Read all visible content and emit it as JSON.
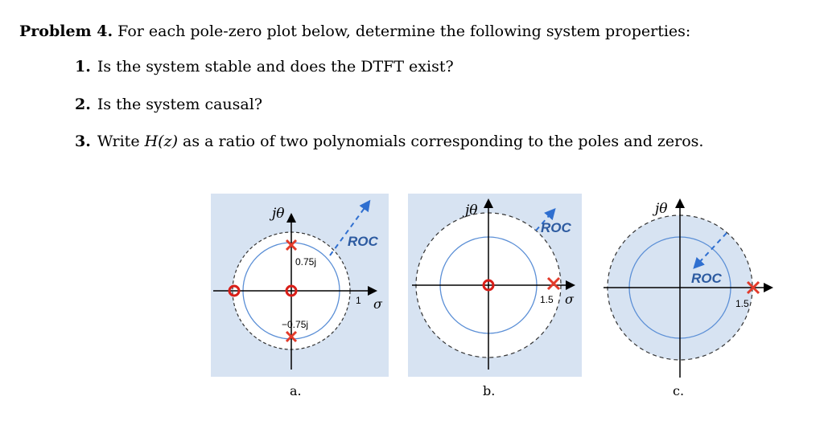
{
  "problem": {
    "label": "Problem 4.",
    "intro": "For each pole-zero plot below, determine the following system properties:"
  },
  "questions": [
    {
      "num": "1.",
      "text": "Is the system stable and does the DTFT exist?"
    },
    {
      "num": "2.",
      "text": "Is the system causal?"
    },
    {
      "num": "3.",
      "pre": "Write ",
      "math": "H(z)",
      "post": " as a ratio of two polynomials corresponding to the poles and zeros."
    }
  ],
  "plots": {
    "a": {
      "caption": "a.",
      "axis_imag": "jθ",
      "axis_real": "σ",
      "roc": "ROC",
      "labels": {
        "upper": "0.75j",
        "lower": "−0.75j",
        "unit": "1"
      }
    },
    "b": {
      "caption": "b.",
      "axis_imag": "jθ",
      "axis_real": "σ",
      "roc": "ROC",
      "labels": {
        "pole": "1.5"
      }
    },
    "c": {
      "caption": "c.",
      "axis_imag": "jθ",
      "roc": "ROC",
      "labels": {
        "pole": "1.5"
      }
    }
  },
  "colors": {
    "roc_fill": "#d7e3f2",
    "unit_circle": "#5b8fd6",
    "roc_arrow": "#2f6fd0",
    "pole": "#e23a2a",
    "zero": "#d91e18",
    "roc_text": "#2c5aa0"
  }
}
